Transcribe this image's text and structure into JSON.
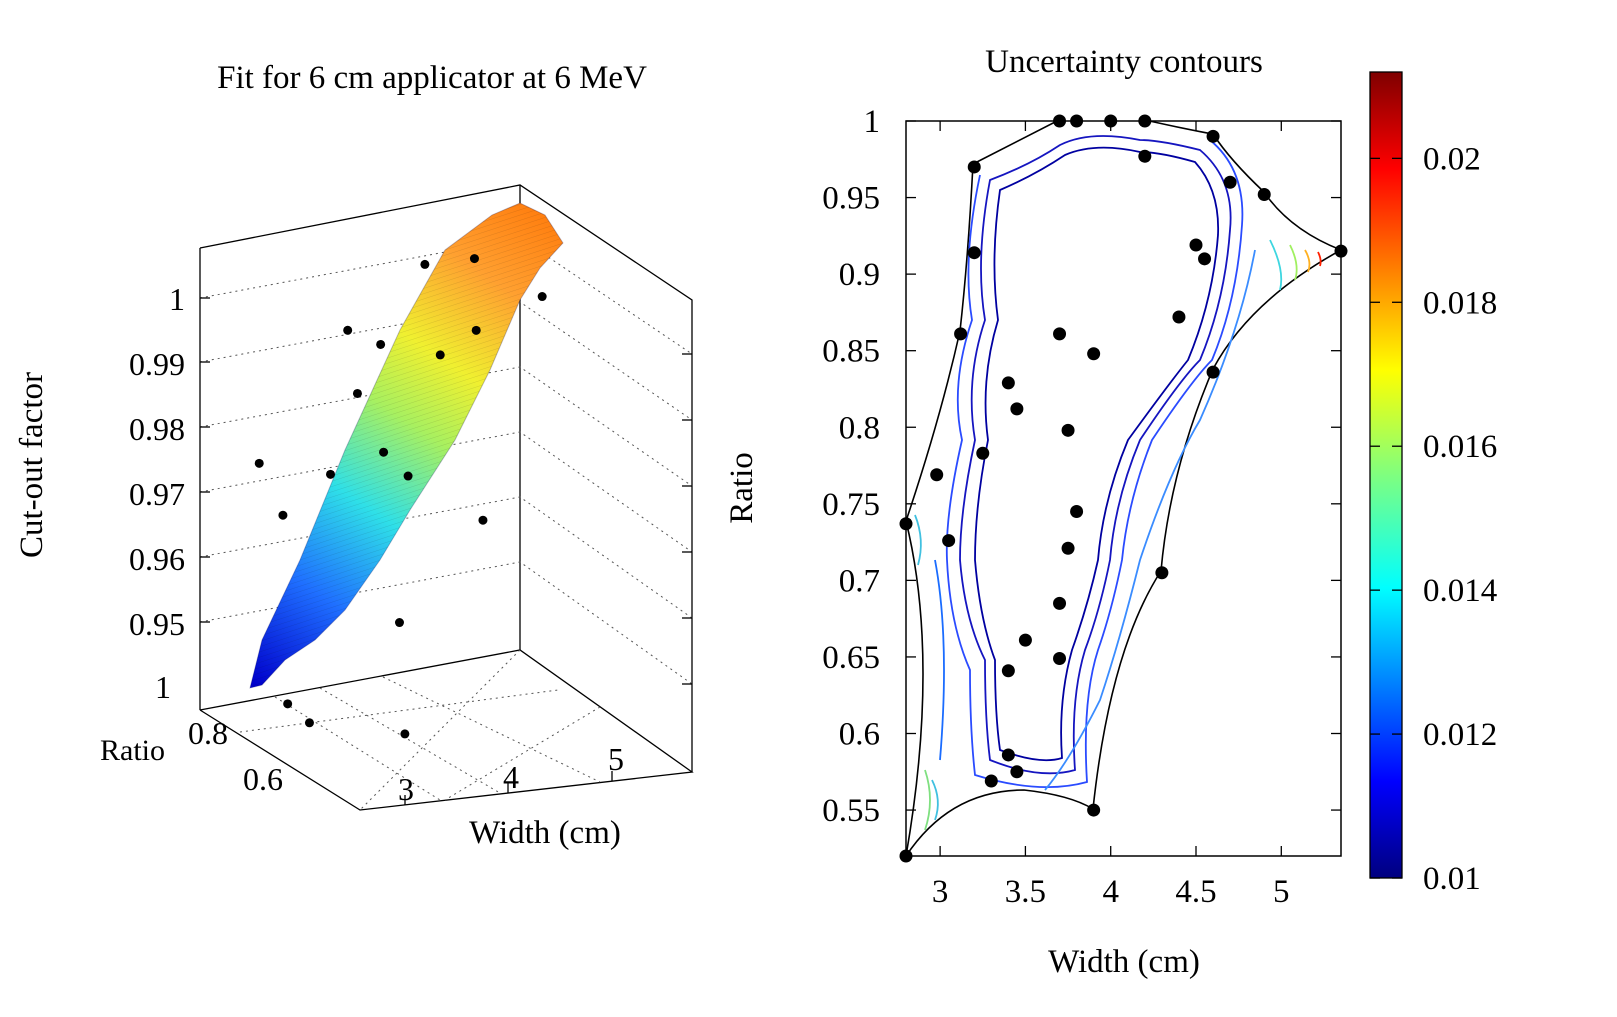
{
  "chart_data": [
    {
      "type": "surface",
      "title": "Fit for 6 cm applicator at 6 MeV",
      "xlabel": "Width (cm)",
      "ylabel": "Ratio",
      "zlabel": "Cut-out factor",
      "x_ticks": [
        "3",
        "4",
        "5"
      ],
      "y_ticks": [
        "0.6",
        "0.8",
        "1"
      ],
      "z_ticks": [
        "0.95",
        "0.96",
        "0.97",
        "0.98",
        "0.99",
        "1"
      ],
      "xlim": [
        2.8,
        5.4
      ],
      "ylim": [
        0.52,
        1.0
      ],
      "zlim": [
        0.94,
        1.005
      ],
      "colormap": "jet",
      "grid": true,
      "points": [
        {
          "x": 2.8,
          "y": 0.737,
          "z": 0.949
        },
        {
          "x": 2.95,
          "y": 0.727,
          "z": 0.946
        },
        {
          "x": 3.1,
          "y": 0.862,
          "z": 0.972
        },
        {
          "x": 3.2,
          "y": 0.97,
          "z": 0.976
        },
        {
          "x": 3.3,
          "y": 0.57,
          "z": 0.948
        },
        {
          "x": 3.4,
          "y": 0.83,
          "z": 0.978
        },
        {
          "x": 3.5,
          "y": 0.66,
          "z": 0.961
        },
        {
          "x": 3.7,
          "y": 0.86,
          "z": 0.988
        },
        {
          "x": 3.75,
          "y": 0.8,
          "z": 0.981
        },
        {
          "x": 3.8,
          "y": 0.745,
          "z": 0.979
        },
        {
          "x": 4.0,
          "y": 1.0,
          "z": 0.992
        },
        {
          "x": 4.2,
          "y": 0.975,
          "z": 0.99
        },
        {
          "x": 4.3,
          "y": 0.705,
          "z": 0.972
        },
        {
          "x": 4.4,
          "y": 0.87,
          "z": 0.991
        },
        {
          "x": 4.6,
          "y": 0.99,
          "z": 1.0
        },
        {
          "x": 4.6,
          "y": 0.836,
          "z": 0.995
        },
        {
          "x": 4.9,
          "y": 0.952,
          "z": 1.001
        },
        {
          "x": 5.35,
          "y": 0.915,
          "z": 0.995
        }
      ]
    },
    {
      "type": "contour",
      "title": "Uncertainty contours",
      "xlabel": "Width (cm)",
      "ylabel": "Ratio",
      "xlim": [
        2.8,
        5.35
      ],
      "ylim": [
        0.52,
        1.0
      ],
      "x_ticks": [
        3,
        3.5,
        4,
        4.5,
        5
      ],
      "x_tick_labels": [
        "3",
        "3.5",
        "4",
        "4.5",
        "5"
      ],
      "y_ticks": [
        0.55,
        0.6,
        0.65,
        0.7,
        0.75,
        0.8,
        0.85,
        0.9,
        0.95,
        1
      ],
      "y_tick_labels": [
        "0.55",
        "0.6",
        "0.65",
        "0.7",
        "0.75",
        "0.8",
        "0.85",
        "0.9",
        "0.95",
        "1"
      ],
      "colorbar": {
        "min": 0.01,
        "max": 0.0212,
        "ticks": [
          0.01,
          0.012,
          0.014,
          0.016,
          0.018,
          0.02
        ],
        "tick_labels": [
          "0.01",
          "0.012",
          "0.014",
          "0.016",
          "0.018",
          "0.02"
        ],
        "colormap": "jet"
      },
      "points": [
        {
          "x": 2.8,
          "y": 0.52
        },
        {
          "x": 2.8,
          "y": 0.737
        },
        {
          "x": 2.98,
          "y": 0.769
        },
        {
          "x": 3.05,
          "y": 0.726
        },
        {
          "x": 3.12,
          "y": 0.861
        },
        {
          "x": 3.2,
          "y": 0.97
        },
        {
          "x": 3.2,
          "y": 0.914
        },
        {
          "x": 3.25,
          "y": 0.783
        },
        {
          "x": 3.3,
          "y": 0.569
        },
        {
          "x": 3.4,
          "y": 0.829
        },
        {
          "x": 3.45,
          "y": 0.812
        },
        {
          "x": 3.4,
          "y": 0.641
        },
        {
          "x": 3.4,
          "y": 0.586
        },
        {
          "x": 3.45,
          "y": 0.575
        },
        {
          "x": 3.5,
          "y": 0.661
        },
        {
          "x": 3.7,
          "y": 1.0
        },
        {
          "x": 3.8,
          "y": 1.0
        },
        {
          "x": 4.0,
          "y": 1.0
        },
        {
          "x": 4.2,
          "y": 1.0
        },
        {
          "x": 4.2,
          "y": 0.977
        },
        {
          "x": 4.6,
          "y": 0.99
        },
        {
          "x": 4.7,
          "y": 0.96
        },
        {
          "x": 4.9,
          "y": 0.952
        },
        {
          "x": 5.35,
          "y": 0.915
        },
        {
          "x": 4.5,
          "y": 0.919
        },
        {
          "x": 4.55,
          "y": 0.91
        },
        {
          "x": 4.4,
          "y": 0.872
        },
        {
          "x": 4.6,
          "y": 0.836
        },
        {
          "x": 3.7,
          "y": 0.861
        },
        {
          "x": 3.9,
          "y": 0.848
        },
        {
          "x": 3.75,
          "y": 0.798
        },
        {
          "x": 3.8,
          "y": 0.745
        },
        {
          "x": 3.75,
          "y": 0.721
        },
        {
          "x": 3.7,
          "y": 0.685
        },
        {
          "x": 3.7,
          "y": 0.649
        },
        {
          "x": 4.3,
          "y": 0.705
        },
        {
          "x": 3.9,
          "y": 0.55
        }
      ]
    }
  ]
}
